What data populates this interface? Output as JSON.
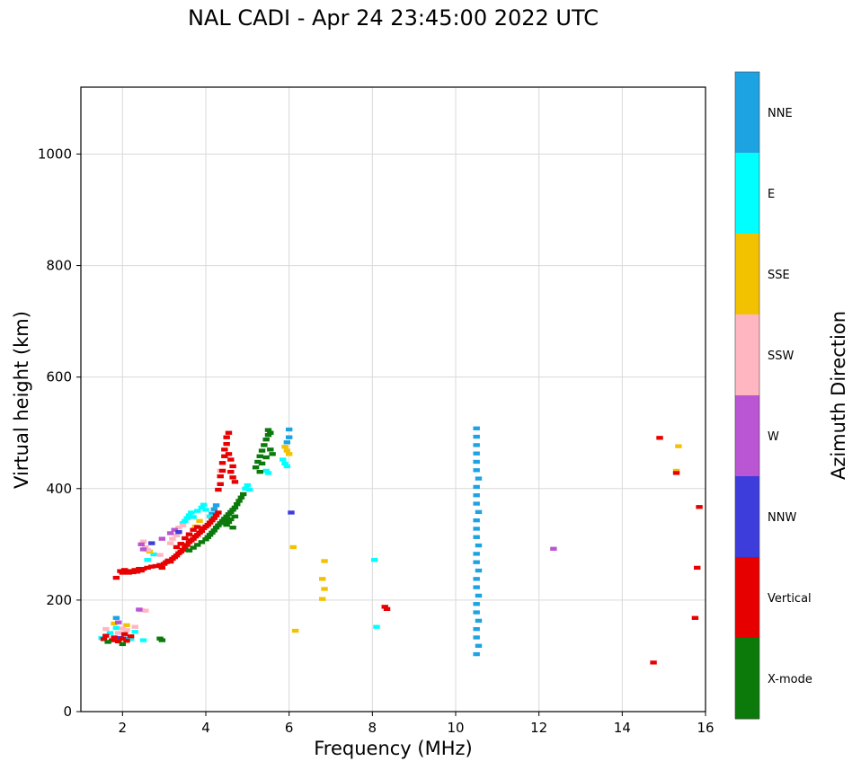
{
  "chart_data": {
    "type": "scatter",
    "title": "NAL CADI - Apr 24 23:45:00 2022 UTC",
    "xlabel": "Frequency (MHz)",
    "ylabel": "Virtual height (km)",
    "xlim": [
      1,
      16
    ],
    "ylim": [
      0,
      1120
    ],
    "xticks": [
      2,
      4,
      6,
      8,
      10,
      12,
      14,
      16
    ],
    "yticks": [
      0,
      200,
      400,
      600,
      800,
      1000
    ],
    "grid": true,
    "grid_color": "#d9d9d9",
    "marker": {
      "width_mhz": 0.16,
      "height_km": 7
    },
    "colorbar": {
      "title": "Azimuth Direction",
      "segments": [
        {
          "label": "NNE",
          "color": "#1da2e2"
        },
        {
          "label": "E",
          "color": "#00ffff"
        },
        {
          "label": "SSE",
          "color": "#f2c200"
        },
        {
          "label": "SSW",
          "color": "#ffb6c1"
        },
        {
          "label": "W",
          "color": "#ba55d3"
        },
        {
          "label": "NNW",
          "color": "#3d3ddc"
        },
        {
          "label": "Vertical",
          "color": "#e60000"
        },
        {
          "label": "X-mode",
          "color": "#0b7a0b"
        }
      ]
    },
    "series": [
      {
        "name": "NNE",
        "color": "#1da2e2",
        "points": [
          [
            10.5,
            103
          ],
          [
            10.55,
            118
          ],
          [
            10.5,
            133
          ],
          [
            10.5,
            148
          ],
          [
            10.55,
            163
          ],
          [
            10.5,
            178
          ],
          [
            10.5,
            193
          ],
          [
            10.55,
            208
          ],
          [
            10.5,
            223
          ],
          [
            10.5,
            238
          ],
          [
            10.55,
            253
          ],
          [
            10.5,
            268
          ],
          [
            10.5,
            283
          ],
          [
            10.55,
            298
          ],
          [
            10.5,
            313
          ],
          [
            10.5,
            328
          ],
          [
            10.5,
            343
          ],
          [
            10.55,
            358
          ],
          [
            10.5,
            373
          ],
          [
            10.5,
            388
          ],
          [
            10.5,
            403
          ],
          [
            10.55,
            418
          ],
          [
            10.5,
            433
          ],
          [
            10.5,
            448
          ],
          [
            10.5,
            463
          ],
          [
            10.5,
            478
          ],
          [
            10.5,
            493
          ],
          [
            10.5,
            508
          ],
          [
            4.15,
            355
          ],
          [
            4.2,
            363
          ],
          [
            4.25,
            370
          ],
          [
            5.95,
            483
          ],
          [
            6.0,
            492
          ],
          [
            6.0,
            506
          ],
          [
            1.85,
            168
          ],
          [
            2.05,
            131
          ]
        ]
      },
      {
        "name": "E",
        "color": "#00ffff",
        "points": [
          [
            1.5,
            132
          ],
          [
            1.7,
            141
          ],
          [
            1.85,
            150
          ],
          [
            2.2,
            130
          ],
          [
            2.3,
            143
          ],
          [
            2.5,
            128
          ],
          [
            2.6,
            272
          ],
          [
            2.75,
            282
          ],
          [
            3.45,
            338
          ],
          [
            3.5,
            342
          ],
          [
            3.55,
            347
          ],
          [
            3.6,
            352
          ],
          [
            3.65,
            357
          ],
          [
            3.7,
            349
          ],
          [
            3.8,
            360
          ],
          [
            3.9,
            366
          ],
          [
            3.95,
            371
          ],
          [
            4.0,
            362
          ],
          [
            4.1,
            350
          ],
          [
            4.95,
            400
          ],
          [
            5.0,
            406
          ],
          [
            5.05,
            398
          ],
          [
            5.45,
            432
          ],
          [
            5.5,
            428
          ],
          [
            5.85,
            452
          ],
          [
            5.9,
            445
          ],
          [
            5.95,
            440
          ],
          [
            8.05,
            272
          ],
          [
            8.1,
            152
          ]
        ]
      },
      {
        "name": "SSE",
        "color": "#f2c200",
        "points": [
          [
            1.8,
            158
          ],
          [
            2.1,
            155
          ],
          [
            2.65,
            287
          ],
          [
            3.75,
            332
          ],
          [
            3.85,
            342
          ],
          [
            5.9,
            475
          ],
          [
            5.95,
            468
          ],
          [
            6.0,
            462
          ],
          [
            6.1,
            295
          ],
          [
            6.15,
            145
          ],
          [
            6.85,
            270
          ],
          [
            6.8,
            238
          ],
          [
            6.85,
            220
          ],
          [
            6.8,
            202
          ],
          [
            15.35,
            476
          ],
          [
            15.3,
            432
          ]
        ]
      },
      {
        "name": "SSW",
        "color": "#ffb6c1",
        "points": [
          [
            1.6,
            148
          ],
          [
            1.9,
            141
          ],
          [
            2.0,
            149
          ],
          [
            2.1,
            146
          ],
          [
            2.3,
            152
          ],
          [
            2.45,
            182
          ],
          [
            2.55,
            181
          ],
          [
            2.5,
            305
          ],
          [
            2.55,
            295
          ],
          [
            2.6,
            290
          ],
          [
            2.9,
            281
          ],
          [
            3.15,
            302
          ],
          [
            3.2,
            310
          ],
          [
            3.3,
            316
          ],
          [
            3.35,
            330
          ],
          [
            3.45,
            334
          ],
          [
            4.35,
            432
          ]
        ]
      },
      {
        "name": "W",
        "color": "#ba55d3",
        "points": [
          [
            1.9,
            160
          ],
          [
            2.4,
            183
          ],
          [
            2.45,
            300
          ],
          [
            2.5,
            291
          ],
          [
            2.95,
            310
          ],
          [
            3.15,
            320
          ],
          [
            3.25,
            326
          ],
          [
            12.35,
            292
          ]
        ]
      },
      {
        "name": "NNW",
        "color": "#3d3ddc",
        "points": [
          [
            1.95,
            132
          ],
          [
            2.7,
            302
          ],
          [
            3.35,
            322
          ],
          [
            6.05,
            357
          ]
        ]
      },
      {
        "name": "Vertical",
        "color": "#e60000",
        "points": [
          [
            1.55,
            130
          ],
          [
            1.6,
            136
          ],
          [
            1.75,
            128
          ],
          [
            1.8,
            133
          ],
          [
            1.9,
            126
          ],
          [
            2.0,
            131
          ],
          [
            2.05,
            139
          ],
          [
            2.1,
            127
          ],
          [
            2.2,
            135
          ],
          [
            1.85,
            240
          ],
          [
            1.95,
            252
          ],
          [
            2.0,
            249
          ],
          [
            2.05,
            254
          ],
          [
            2.1,
            251
          ],
          [
            2.15,
            249
          ],
          [
            2.2,
            252
          ],
          [
            2.25,
            250
          ],
          [
            2.3,
            254
          ],
          [
            2.35,
            251
          ],
          [
            2.4,
            256
          ],
          [
            2.45,
            253
          ],
          [
            2.5,
            256
          ],
          [
            2.6,
            258
          ],
          [
            2.7,
            260
          ],
          [
            2.8,
            261
          ],
          [
            2.9,
            263
          ],
          [
            2.95,
            258
          ],
          [
            3.0,
            265
          ],
          [
            3.05,
            268
          ],
          [
            3.1,
            271
          ],
          [
            3.15,
            269
          ],
          [
            3.2,
            274
          ],
          [
            3.25,
            277
          ],
          [
            3.3,
            280
          ],
          [
            3.35,
            284
          ],
          [
            3.4,
            287
          ],
          [
            3.45,
            290
          ],
          [
            3.5,
            294
          ],
          [
            3.55,
            299
          ],
          [
            3.6,
            304
          ],
          [
            3.65,
            307
          ],
          [
            3.7,
            310
          ],
          [
            3.75,
            314
          ],
          [
            3.8,
            317
          ],
          [
            3.85,
            321
          ],
          [
            3.9,
            324
          ],
          [
            3.95,
            329
          ],
          [
            4.0,
            332
          ],
          [
            3.3,
            295
          ],
          [
            3.4,
            301
          ],
          [
            3.5,
            311
          ],
          [
            3.6,
            318
          ],
          [
            3.7,
            326
          ],
          [
            3.8,
            331
          ],
          [
            4.05,
            335
          ],
          [
            4.1,
            339
          ],
          [
            4.15,
            343
          ],
          [
            4.2,
            347
          ],
          [
            4.25,
            352
          ],
          [
            4.3,
            357
          ],
          [
            4.3,
            398
          ],
          [
            4.35,
            408
          ],
          [
            4.35,
            422
          ],
          [
            4.4,
            432
          ],
          [
            4.4,
            446
          ],
          [
            4.45,
            458
          ],
          [
            4.45,
            470
          ],
          [
            4.5,
            480
          ],
          [
            4.5,
            492
          ],
          [
            4.55,
            500
          ],
          [
            4.55,
            462
          ],
          [
            4.6,
            452
          ],
          [
            4.6,
            430
          ],
          [
            4.65,
            420
          ],
          [
            4.65,
            440
          ],
          [
            4.7,
            412
          ],
          [
            8.3,
            188
          ],
          [
            8.35,
            184
          ],
          [
            14.9,
            491
          ],
          [
            15.3,
            428
          ],
          [
            15.85,
            367
          ],
          [
            15.8,
            258
          ],
          [
            15.75,
            168
          ],
          [
            14.75,
            88
          ]
        ]
      },
      {
        "name": "X-mode",
        "color": "#0b7a0b",
        "points": [
          [
            1.65,
            125
          ],
          [
            2.0,
            121
          ],
          [
            2.9,
            131
          ],
          [
            2.95,
            128
          ],
          [
            3.6,
            289
          ],
          [
            3.7,
            294
          ],
          [
            3.8,
            299
          ],
          [
            3.9,
            304
          ],
          [
            4.0,
            309
          ],
          [
            4.05,
            313
          ],
          [
            4.1,
            317
          ],
          [
            4.15,
            321
          ],
          [
            4.2,
            325
          ],
          [
            4.25,
            330
          ],
          [
            4.3,
            334
          ],
          [
            4.35,
            338
          ],
          [
            4.4,
            342
          ],
          [
            4.45,
            346
          ],
          [
            4.5,
            350
          ],
          [
            4.5,
            335
          ],
          [
            4.55,
            354
          ],
          [
            4.55,
            340
          ],
          [
            4.6,
            358
          ],
          [
            4.6,
            345
          ],
          [
            4.65,
            362
          ],
          [
            4.65,
            330
          ],
          [
            4.7,
            366
          ],
          [
            4.7,
            350
          ],
          [
            4.75,
            372
          ],
          [
            4.8,
            378
          ],
          [
            4.85,
            384
          ],
          [
            4.9,
            390
          ],
          [
            5.2,
            438
          ],
          [
            5.25,
            448
          ],
          [
            5.3,
            458
          ],
          [
            5.3,
            430
          ],
          [
            5.35,
            468
          ],
          [
            5.35,
            445
          ],
          [
            5.4,
            478
          ],
          [
            5.45,
            488
          ],
          [
            5.45,
            456
          ],
          [
            5.5,
            496
          ],
          [
            5.5,
            505
          ],
          [
            5.55,
            500
          ],
          [
            5.55,
            470
          ],
          [
            5.6,
            462
          ]
        ]
      }
    ]
  }
}
